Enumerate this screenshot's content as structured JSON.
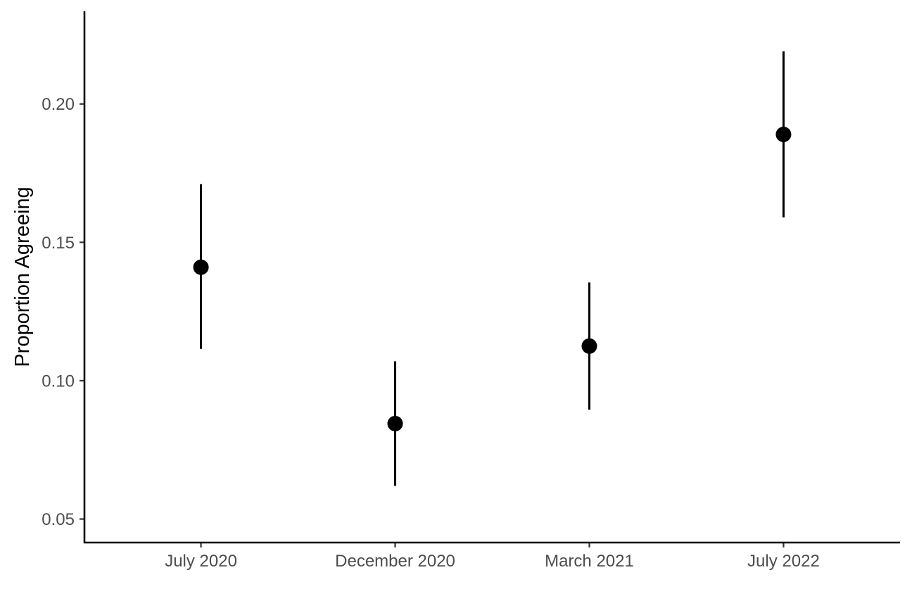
{
  "chart_data": {
    "type": "pointrange",
    "title": "",
    "xlabel": "",
    "ylabel": "Proportion Agreeing",
    "categories": [
      "July 2020",
      "December 2020",
      "March 2021",
      "July 2022"
    ],
    "series": [
      {
        "values": [
          0.141,
          0.0845,
          0.1125,
          0.189
        ],
        "lower": [
          0.1115,
          0.062,
          0.0895,
          0.159
        ],
        "upper": [
          0.171,
          0.107,
          0.1355,
          0.219
        ]
      }
    ],
    "ylim": [
      0.0415,
      0.2335
    ],
    "y_ticks": [
      0.05,
      0.1,
      0.15,
      0.2
    ],
    "y_tick_labels": [
      "0.05",
      "0.10",
      "0.15",
      "0.20"
    ],
    "grid": false,
    "legend": "none",
    "colors": {
      "points": "#000000",
      "tick_labels": "#4d4d4d"
    }
  }
}
